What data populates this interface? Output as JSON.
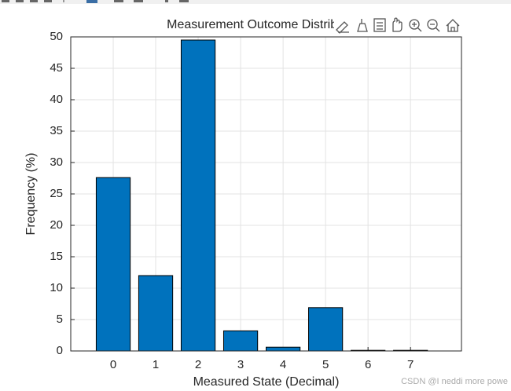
{
  "chart_data": {
    "type": "bar",
    "title": "Measurement Outcome Distribution",
    "x": [
      0,
      1,
      2,
      3,
      4,
      5,
      6,
      7
    ],
    "values": [
      27.6,
      12.0,
      49.5,
      3.2,
      0.6,
      6.9,
      0.1,
      0.1
    ],
    "color": "#0072bd",
    "xlabel": "Measured State (Decimal)",
    "ylabel": "Frequency (%)",
    "xlim": [
      -1,
      8.2
    ],
    "xticks": [
      0,
      1,
      2,
      3,
      4,
      5,
      6,
      7
    ],
    "ylim": [
      0,
      50
    ],
    "yticks": [
      0,
      5,
      10,
      15,
      20,
      25,
      30,
      35,
      40,
      45,
      50
    ],
    "grid": true,
    "bar_width": 0.8,
    "watermark": "CSDN @I neddi more powe"
  }
}
